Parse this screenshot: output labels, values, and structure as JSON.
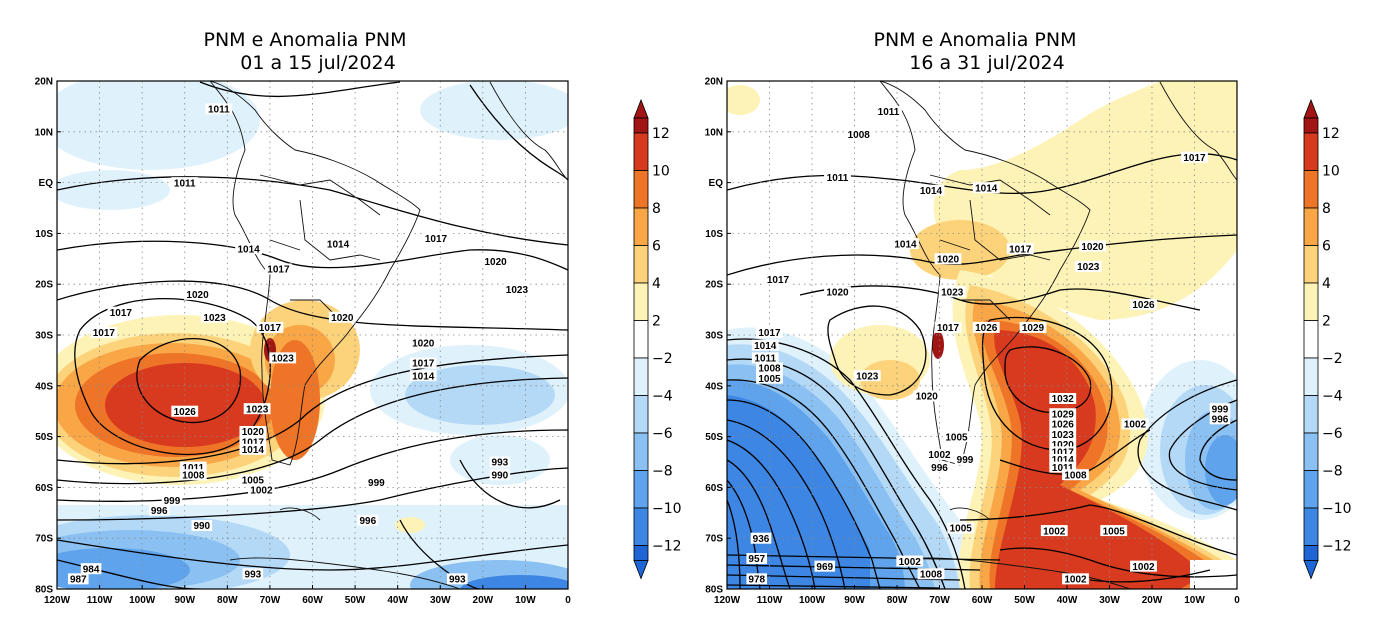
{
  "colors": {
    "neg12": "#1f65d6",
    "neg10": "#3e86e3",
    "neg8": "#5ea3ec",
    "neg6": "#8bc0f2",
    "neg4": "#b4d9f7",
    "neg2": "#dff2fc",
    "zero": "#ffffff",
    "pos2": "#fdf3b7",
    "pos4": "#fcd37a",
    "pos6": "#f9a647",
    "pos8": "#ee7427",
    "pos10": "#d83a1f",
    "pos12": "#a11515"
  },
  "panels": [
    {
      "title_line1": "PNM e Anomalia PNM",
      "title_line2": "01 a 15 jul/2024",
      "lat_labels": [
        "20N",
        "10N",
        "EQ",
        "10S",
        "20S",
        "30S",
        "40S",
        "50S",
        "60S",
        "70S",
        "80S"
      ],
      "lon_labels": [
        "120W",
        "110W",
        "100W",
        "90W",
        "80W",
        "70W",
        "60W",
        "50W",
        "40W",
        "30W",
        "20W",
        "10W",
        "0"
      ],
      "isobar_labels": [
        {
          "text": "1011",
          "lon": -82,
          "lat": 14.5
        },
        {
          "text": "1011",
          "lon": -90,
          "lat": 0
        },
        {
          "text": "1014",
          "lon": -75,
          "lat": -13
        },
        {
          "text": "1014",
          "lon": -54,
          "lat": -12
        },
        {
          "text": "1017",
          "lon": -68,
          "lat": -17
        },
        {
          "text": "1017",
          "lon": -31,
          "lat": -11
        },
        {
          "text": "1020",
          "lon": -17,
          "lat": -15.5
        },
        {
          "text": "1023",
          "lon": -12,
          "lat": -21
        },
        {
          "text": "1020",
          "lon": -87,
          "lat": -22
        },
        {
          "text": "1023",
          "lon": -83,
          "lat": -26.5
        },
        {
          "text": "1017",
          "lon": -105,
          "lat": -25.5
        },
        {
          "text": "1017",
          "lon": -109,
          "lat": -29.5
        },
        {
          "text": "1017",
          "lon": -70,
          "lat": -28.5
        },
        {
          "text": "1020",
          "lon": -53,
          "lat": -26.5
        },
        {
          "text": "1023",
          "lon": -67,
          "lat": -34.5
        },
        {
          "text": "1026",
          "lon": -90,
          "lat": -45
        },
        {
          "text": "1023",
          "lon": -73,
          "lat": -44.5
        },
        {
          "text": "1020",
          "lon": -74,
          "lat": -49
        },
        {
          "text": "1017",
          "lon": -74,
          "lat": -51
        },
        {
          "text": "1014",
          "lon": -74,
          "lat": -52.5
        },
        {
          "text": "1020",
          "lon": -34,
          "lat": -31.5
        },
        {
          "text": "1017",
          "lon": -34,
          "lat": -35.5
        },
        {
          "text": "1014",
          "lon": -34,
          "lat": -38
        },
        {
          "text": "1011",
          "lon": -88,
          "lat": -56
        },
        {
          "text": "1008",
          "lon": -88,
          "lat": -57.5
        },
        {
          "text": "1005",
          "lon": -74,
          "lat": -58.5
        },
        {
          "text": "1002",
          "lon": -72,
          "lat": -60.5
        },
        {
          "text": "999",
          "lon": -93,
          "lat": -62.5
        },
        {
          "text": "996",
          "lon": -96,
          "lat": -64.5
        },
        {
          "text": "999",
          "lon": -45,
          "lat": -59
        },
        {
          "text": "993",
          "lon": -16,
          "lat": -55
        },
        {
          "text": "990",
          "lon": -16,
          "lat": -57.5
        },
        {
          "text": "996",
          "lon": -47,
          "lat": -66.5
        },
        {
          "text": "990",
          "lon": -86,
          "lat": -67.5
        },
        {
          "text": "993",
          "lon": -74,
          "lat": -77
        },
        {
          "text": "984",
          "lon": -112,
          "lat": -76
        },
        {
          "text": "987",
          "lon": -115,
          "lat": -78
        },
        {
          "text": "993",
          "lon": -26,
          "lat": -78
        }
      ]
    },
    {
      "title_line1": "PNM e Anomalia PNM",
      "title_line2": "16 a 31 jul/2024",
      "lat_labels": [
        "20N",
        "10N",
        "EQ",
        "10S",
        "20S",
        "30S",
        "40S",
        "50S",
        "60S",
        "70S",
        "80S"
      ],
      "lon_labels": [
        "120W",
        "110W",
        "100W",
        "90W",
        "80W",
        "70W",
        "60W",
        "50W",
        "40W",
        "30W",
        "20W",
        "10W",
        "0"
      ],
      "isobar_labels": [
        {
          "text": "1011",
          "lon": -82,
          "lat": 14
        },
        {
          "text": "1008",
          "lon": -89,
          "lat": 9.5
        },
        {
          "text": "1011",
          "lon": -94,
          "lat": 1
        },
        {
          "text": "1014",
          "lon": -72,
          "lat": -1.5
        },
        {
          "text": "1014",
          "lon": -59,
          "lat": -1
        },
        {
          "text": "1017",
          "lon": -10,
          "lat": 5
        },
        {
          "text": "1014",
          "lon": -78,
          "lat": -12
        },
        {
          "text": "1017",
          "lon": -51,
          "lat": -13
        },
        {
          "text": "1020",
          "lon": -34,
          "lat": -12.5
        },
        {
          "text": "1020",
          "lon": -68,
          "lat": -15
        },
        {
          "text": "1023",
          "lon": -35,
          "lat": -16.5
        },
        {
          "text": "1017",
          "lon": -108,
          "lat": -19
        },
        {
          "text": "1020",
          "lon": -94,
          "lat": -21.5
        },
        {
          "text": "1023",
          "lon": -67,
          "lat": -21.5
        },
        {
          "text": "1026",
          "lon": -22,
          "lat": -24
        },
        {
          "text": "1017",
          "lon": -68,
          "lat": -28.5
        },
        {
          "text": "1026",
          "lon": -59,
          "lat": -28.5
        },
        {
          "text": "1029",
          "lon": -48,
          "lat": -28.5
        },
        {
          "text": "1017",
          "lon": -110,
          "lat": -29.5
        },
        {
          "text": "1014",
          "lon": -111,
          "lat": -32
        },
        {
          "text": "1011",
          "lon": -111,
          "lat": -34.5
        },
        {
          "text": "1008",
          "lon": -110,
          "lat": -36.5
        },
        {
          "text": "1005",
          "lon": -110,
          "lat": -38.5
        },
        {
          "text": "1023",
          "lon": -87,
          "lat": -38
        },
        {
          "text": "1020",
          "lon": -73,
          "lat": -42
        },
        {
          "text": "1032",
          "lon": -41,
          "lat": -42.5
        },
        {
          "text": "1029",
          "lon": -41,
          "lat": -45.5
        },
        {
          "text": "1026",
          "lon": -41,
          "lat": -47.5
        },
        {
          "text": "1023",
          "lon": -41,
          "lat": -49.5
        },
        {
          "text": "1020",
          "lon": -41,
          "lat": -51.5
        },
        {
          "text": "1017",
          "lon": -41,
          "lat": -53
        },
        {
          "text": "1014",
          "lon": -41,
          "lat": -54.5
        },
        {
          "text": "1011",
          "lon": -41,
          "lat": -56
        },
        {
          "text": "1008",
          "lon": -38,
          "lat": -57.5
        },
        {
          "text": "1005",
          "lon": -66,
          "lat": -50
        },
        {
          "text": "1002",
          "lon": -70,
          "lat": -53.5
        },
        {
          "text": "999",
          "lon": -64,
          "lat": -54.5
        },
        {
          "text": "996",
          "lon": -70,
          "lat": -56
        },
        {
          "text": "1002",
          "lon": -24,
          "lat": -47.5
        },
        {
          "text": "999",
          "lon": -4,
          "lat": -44.5
        },
        {
          "text": "996",
          "lon": -4,
          "lat": -46.5
        },
        {
          "text": "1005",
          "lon": -65,
          "lat": -68
        },
        {
          "text": "1002",
          "lon": -43,
          "lat": -68.5
        },
        {
          "text": "1005",
          "lon": -29,
          "lat": -68.5
        },
        {
          "text": "1002",
          "lon": -22,
          "lat": -75.5
        },
        {
          "text": "1002",
          "lon": -38,
          "lat": -78
        },
        {
          "text": "1002",
          "lon": -77,
          "lat": -74.5
        },
        {
          "text": "1008",
          "lon": -72,
          "lat": -77
        },
        {
          "text": "936",
          "lon": -112,
          "lat": -70
        },
        {
          "text": "957",
          "lon": -113,
          "lat": -74
        },
        {
          "text": "969",
          "lon": -97,
          "lat": -75.5
        },
        {
          "text": "978",
          "lon": -113,
          "lat": -78
        }
      ]
    }
  ],
  "colorbar_labels": [
    "12",
    "10",
    "8",
    "6",
    "4",
    "2",
    "−2",
    "−4",
    "−6",
    "−8",
    "−10",
    "−12"
  ]
}
